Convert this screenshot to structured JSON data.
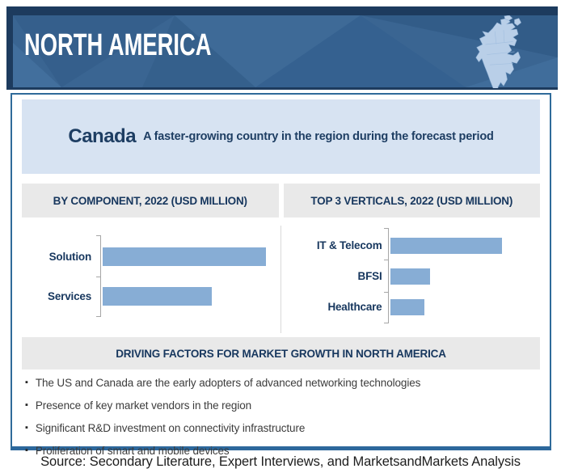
{
  "header": {
    "title": "NORTH AMERICA",
    "map_icon": "north-america-map-icon"
  },
  "highlight": {
    "country": "Canada",
    "text": "A faster-growing country in the region during the forecast period"
  },
  "chart_data": [
    {
      "type": "bar",
      "orientation": "horizontal",
      "title": "BY COMPONENT, 2022 (USD MILLION)",
      "categories": [
        "Solution",
        "Services"
      ],
      "values_relative_pct": [
        100,
        67
      ],
      "value_axis_labels_shown": false,
      "bar_color": "#87add5",
      "legend": "none",
      "grid": "off"
    },
    {
      "type": "bar",
      "orientation": "horizontal",
      "title": "TOP 3 VERTICALS, 2022 (USD MILLION)",
      "categories": [
        "IT & Telecom",
        "BFSI",
        "Healthcare"
      ],
      "values_relative_pct": [
        100,
        36,
        31
      ],
      "value_axis_labels_shown": false,
      "bar_color": "#87add5",
      "legend": "none",
      "grid": "off"
    }
  ],
  "driving_factors": {
    "title": "DRIVING FACTORS FOR MARKET GROWTH IN NORTH AMERICA",
    "bullets": [
      "The US and Canada are the early adopters of advanced networking technologies",
      "Presence of key market vendors in the region",
      "Significant R&D investment on connectivity infrastructure",
      "Proliferation of smart and mobile devices"
    ]
  },
  "source_line": "Source: Secondary Literature, Expert Interviews, and MarketsandMarkets Analysis",
  "colors": {
    "header_navy": "#1d3b5e",
    "header_blue": "#3a6592",
    "map_fill": "#b9cfe8",
    "box_border": "#2f6b9a",
    "highlight_band_bg": "#d7e3f2",
    "highlight_text": "#1e3e63",
    "section_band_bg": "#e9e9e9",
    "section_text": "#17375e",
    "bar_fill": "#87add5",
    "axis_gray": "#a6a6a6",
    "bullet_text": "#3c3c3c"
  }
}
